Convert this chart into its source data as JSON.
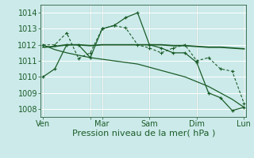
{
  "background_color": "#cceaea",
  "grid_color": "#b8d8d8",
  "line_dark": "#1a5c28",
  "xlabel": "Pression niveau de la mer( hPa )",
  "xlabel_fontsize": 8,
  "tick_label_fontsize": 7,
  "ylim": [
    1007.5,
    1014.5
  ],
  "yticks": [
    1008,
    1009,
    1010,
    1011,
    1012,
    1013,
    1014
  ],
  "xlim": [
    -0.2,
    17.2
  ],
  "vline_x": [
    0,
    4,
    5,
    9,
    13,
    17
  ],
  "xtick_pos": [
    0,
    4,
    5,
    9,
    13,
    17
  ],
  "xtick_lab": [
    "Ven",
    "",
    "Mar",
    "Sam",
    "Dim",
    "Lun"
  ],
  "lineA_x": [
    0,
    1,
    2,
    3,
    4,
    5,
    6,
    7,
    8,
    9,
    10,
    11,
    12,
    13,
    14,
    15,
    16,
    17
  ],
  "lineA_y": [
    1010.0,
    1010.5,
    1012.0,
    1012.0,
    1011.2,
    1013.0,
    1013.2,
    1013.7,
    1014.0,
    1012.0,
    1011.8,
    1011.5,
    1011.5,
    1010.9,
    1009.0,
    1008.7,
    1007.9,
    1008.1
  ],
  "lineB_x": [
    0,
    1,
    2,
    3,
    4,
    5,
    6,
    7,
    8,
    9,
    10,
    11,
    12,
    13,
    14,
    15,
    16,
    17
  ],
  "lineB_y": [
    1011.85,
    1011.9,
    1012.0,
    1012.0,
    1011.95,
    1012.0,
    1012.0,
    1012.0,
    1012.0,
    1012.0,
    1012.0,
    1011.95,
    1011.95,
    1011.9,
    1011.85,
    1011.85,
    1011.8,
    1011.75
  ],
  "lineC_x": [
    0,
    1,
    2,
    3,
    4,
    5,
    6,
    7,
    8,
    9,
    10,
    11,
    12,
    13,
    14,
    15,
    16,
    17
  ],
  "lineC_y": [
    1012.0,
    1012.0,
    1012.75,
    1011.15,
    1011.5,
    1013.0,
    1013.2,
    1013.05,
    1012.0,
    1011.8,
    1011.5,
    1011.8,
    1012.0,
    1011.0,
    1011.2,
    1010.5,
    1010.35,
    1008.35
  ],
  "lineD_x": [
    0,
    1,
    2,
    3,
    4,
    5,
    6,
    7,
    8,
    9,
    10,
    11,
    12,
    13,
    14,
    15,
    16,
    17
  ],
  "lineD_y": [
    1012.0,
    1011.7,
    1011.5,
    1011.35,
    1011.2,
    1011.1,
    1011.0,
    1010.9,
    1010.8,
    1010.6,
    1010.4,
    1010.2,
    1010.0,
    1009.7,
    1009.4,
    1009.0,
    1008.6,
    1008.1
  ]
}
